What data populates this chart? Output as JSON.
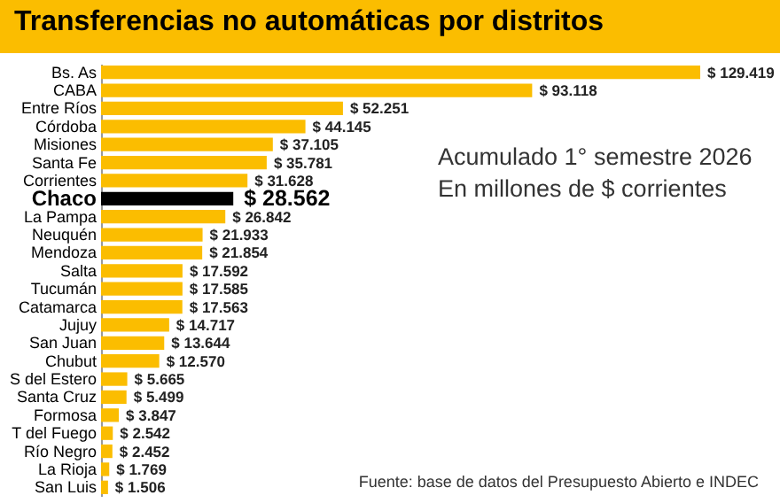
{
  "chart_data": {
    "type": "bar",
    "orientation": "horizontal",
    "title": "Transferencias no automáticas por distritos",
    "categories": [
      "Bs. As",
      "CABA",
      "Entre Ríos",
      "Córdoba",
      "Misiones",
      "Santa Fe",
      "Corrientes",
      "Chaco",
      "La Pampa",
      "Neuquén",
      "Mendoza",
      "Salta",
      "Tucumán",
      "Catamarca",
      "Jujuy",
      "San Juan",
      "Chubut",
      "S del Estero",
      "Santa Cruz",
      "Formosa",
      "T del Fuego",
      "Río Negro",
      "La Rioja",
      "San Luis"
    ],
    "values": [
      129419,
      93118,
      52251,
      44145,
      37105,
      35781,
      31628,
      28562,
      26842,
      21933,
      21854,
      17592,
      17585,
      17563,
      14717,
      13644,
      12570,
      5665,
      5499,
      3847,
      2542,
      2452,
      1769,
      1506
    ],
    "value_labels": [
      "$ 129.419",
      "$ 93.118",
      "$ 52.251",
      "$ 44.145",
      "$ 37.105",
      "$ 35.781",
      "$ 31.628",
      "$ 28.562",
      "$ 26.842",
      "$ 21.933",
      "$ 21.854",
      "$ 17.592",
      "$ 17.585",
      "$ 17.563",
      "$ 14.717",
      "$ 13.644",
      "$ 12.570",
      "$ 5.665",
      "$ 5.499",
      "$ 3.847",
      "$ 2.542",
      "$ 2.452",
      "$ 1.769",
      "$ 1.506"
    ],
    "colors": [
      "#fbbd00",
      "#fbbd00",
      "#fbbd00",
      "#fbbd00",
      "#fbbd00",
      "#fbbd00",
      "#fbbd00",
      "#000000",
      "#fbbd00",
      "#fbbd00",
      "#fbbd00",
      "#fbbd00",
      "#fbbd00",
      "#fbbd00",
      "#fbbd00",
      "#fbbd00",
      "#fbbd00",
      "#fbbd00",
      "#fbbd00",
      "#fbbd00",
      "#fbbd00",
      "#fbbd00",
      "#fbbd00",
      "#fbbd00"
    ],
    "annotations": [
      "Acumulado 1° semestre 2026",
      "En millones de $ corrientes",
      "Fuente: base de datos del Presupuesto Abierto e INDEC"
    ]
  }
}
